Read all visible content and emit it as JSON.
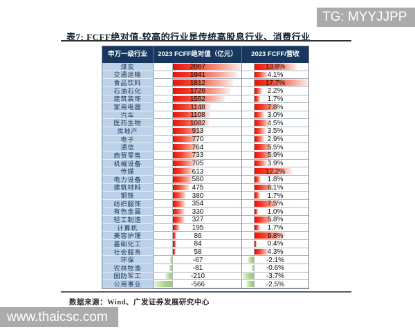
{
  "watermarks": {
    "top_right": "TG: MYYJJPP",
    "bottom_left": "www.thaicsc.com"
  },
  "title": "表7:  FCFF绝对值-较高的行业是传统高股息行业、消费行业",
  "footer": {
    "source": "数据来源：Wind、广发证券发展研究中心"
  },
  "table": {
    "headers": [
      "申万一级行业",
      "2023 FCFF绝对值（亿元）",
      "2023 FCFF/营收"
    ]
  },
  "colors": {
    "header_bg": "#17375e",
    "industry_cell_bg": "#bdd2e8",
    "positive_bar": "#ee150a",
    "negative_bar": "#97c772",
    "watermark_bg": "#ababab"
  },
  "chart_data": {
    "type": "table",
    "title": "FCFF绝对值-较高的行业是传统高股息行业、消费行业",
    "columns": [
      "申万一级行业",
      "2023 FCFF绝对值（亿元）",
      "2023 FCFF/营收"
    ],
    "bar_style": "excel-gradient-databar, red positive / green negative, zero axis inside cell",
    "value_axis": {
      "fcff_max": 2067,
      "fcff_min": -566,
      "margin_max_pct": 17.7,
      "margin_min_pct": -3.7
    },
    "rows": [
      {
        "industry": "煤炭",
        "fcff": 2067,
        "fcff_margin_pct": 13.8
      },
      {
        "industry": "交通运输",
        "fcff": 1941,
        "fcff_margin_pct": 4.1
      },
      {
        "industry": "食品饮料",
        "fcff": 1812,
        "fcff_margin_pct": 17.7
      },
      {
        "industry": "石油石化",
        "fcff": 1726,
        "fcff_margin_pct": 2.2
      },
      {
        "industry": "建筑装饰",
        "fcff": 1552,
        "fcff_margin_pct": 1.7
      },
      {
        "industry": "家用电器",
        "fcff": 1148,
        "fcff_margin_pct": 7.8
      },
      {
        "industry": "汽车",
        "fcff": 1108,
        "fcff_margin_pct": 3.0
      },
      {
        "industry": "医药生物",
        "fcff": 1082,
        "fcff_margin_pct": 4.5
      },
      {
        "industry": "房地产",
        "fcff": 913,
        "fcff_margin_pct": 3.5
      },
      {
        "industry": "电子",
        "fcff": 770,
        "fcff_margin_pct": 2.9
      },
      {
        "industry": "通信",
        "fcff": 764,
        "fcff_margin_pct": 5.5
      },
      {
        "industry": "商贸零售",
        "fcff": 733,
        "fcff_margin_pct": 5.9
      },
      {
        "industry": "机械设备",
        "fcff": 705,
        "fcff_margin_pct": 3.9
      },
      {
        "industry": "传媒",
        "fcff": 613,
        "fcff_margin_pct": 12.2
      },
      {
        "industry": "电力设备",
        "fcff": 580,
        "fcff_margin_pct": 1.8
      },
      {
        "industry": "建筑材料",
        "fcff": 475,
        "fcff_margin_pct": 6.1
      },
      {
        "industry": "钢铁",
        "fcff": 380,
        "fcff_margin_pct": 1.7
      },
      {
        "industry": "纺织服饰",
        "fcff": 354,
        "fcff_margin_pct": 7.5
      },
      {
        "industry": "有色金属",
        "fcff": 330,
        "fcff_margin_pct": 1.0
      },
      {
        "industry": "轻工制造",
        "fcff": 327,
        "fcff_margin_pct": 5.8
      },
      {
        "industry": "计算机",
        "fcff": 195,
        "fcff_margin_pct": 1.7
      },
      {
        "industry": "美容护理",
        "fcff": 86,
        "fcff_margin_pct": 9.8
      },
      {
        "industry": "基础化工",
        "fcff": 84,
        "fcff_margin_pct": 0.4
      },
      {
        "industry": "社会服务",
        "fcff": 58,
        "fcff_margin_pct": 4.3
      },
      {
        "industry": "环保",
        "fcff": -67,
        "fcff_margin_pct": -2.1
      },
      {
        "industry": "农林牧渔",
        "fcff": -81,
        "fcff_margin_pct": -0.6
      },
      {
        "industry": "国防军工",
        "fcff": -210,
        "fcff_margin_pct": -3.7
      },
      {
        "industry": "公用事业",
        "fcff": -566,
        "fcff_margin_pct": -2.5
      }
    ]
  }
}
